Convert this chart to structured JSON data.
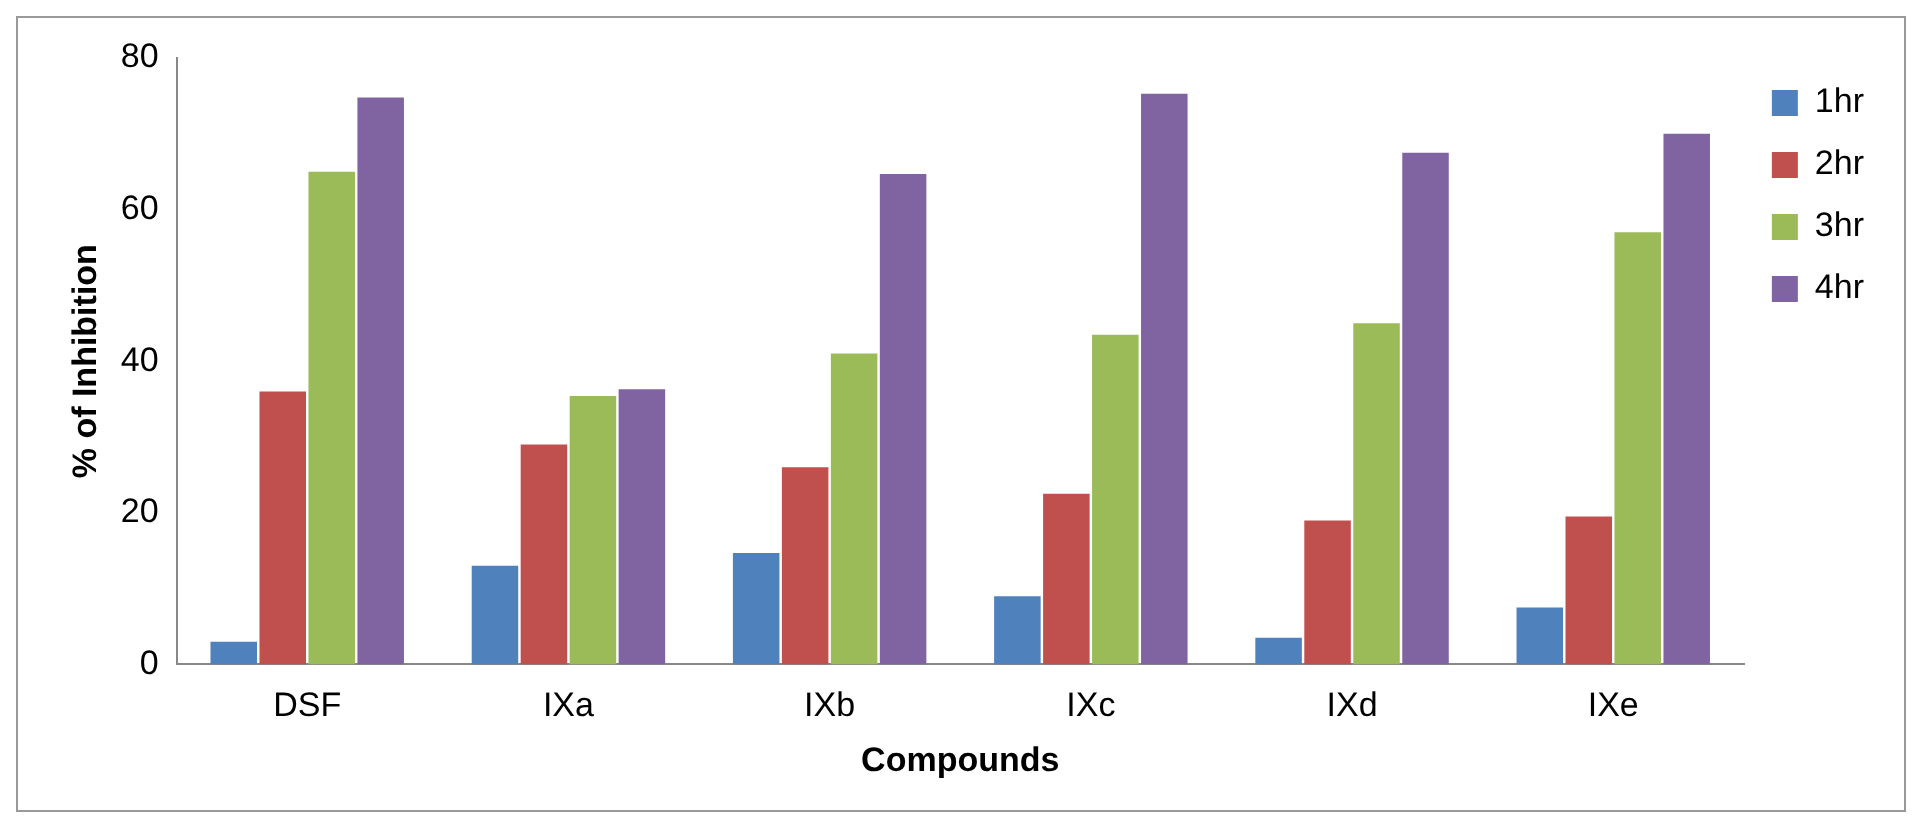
{
  "chart_data": {
    "type": "bar",
    "xlabel": "Compounds",
    "ylabel": "% of Inhibition",
    "categories": [
      "DSF",
      "IXa",
      "IXb",
      "IXc",
      "IXd",
      "IXe"
    ],
    "series": [
      {
        "name": "1hr",
        "color": "#4f81bd",
        "values": [
          3,
          13,
          14.7,
          9,
          3.5,
          7.5
        ]
      },
      {
        "name": "2hr",
        "color": "#c0504d",
        "values": [
          36,
          29,
          26,
          22.5,
          19,
          19.5
        ]
      },
      {
        "name": "3hr",
        "color": "#9bbb59",
        "values": [
          65,
          35.4,
          41,
          43.5,
          45,
          57
        ]
      },
      {
        "name": "4hr",
        "color": "#8064a2",
        "values": [
          74.8,
          36.3,
          64.7,
          75.3,
          67.5,
          70
        ]
      }
    ],
    "ylim": [
      0,
      80
    ],
    "yticks": [
      0,
      20,
      40,
      60,
      80
    ],
    "grid": false,
    "legend": "right"
  }
}
